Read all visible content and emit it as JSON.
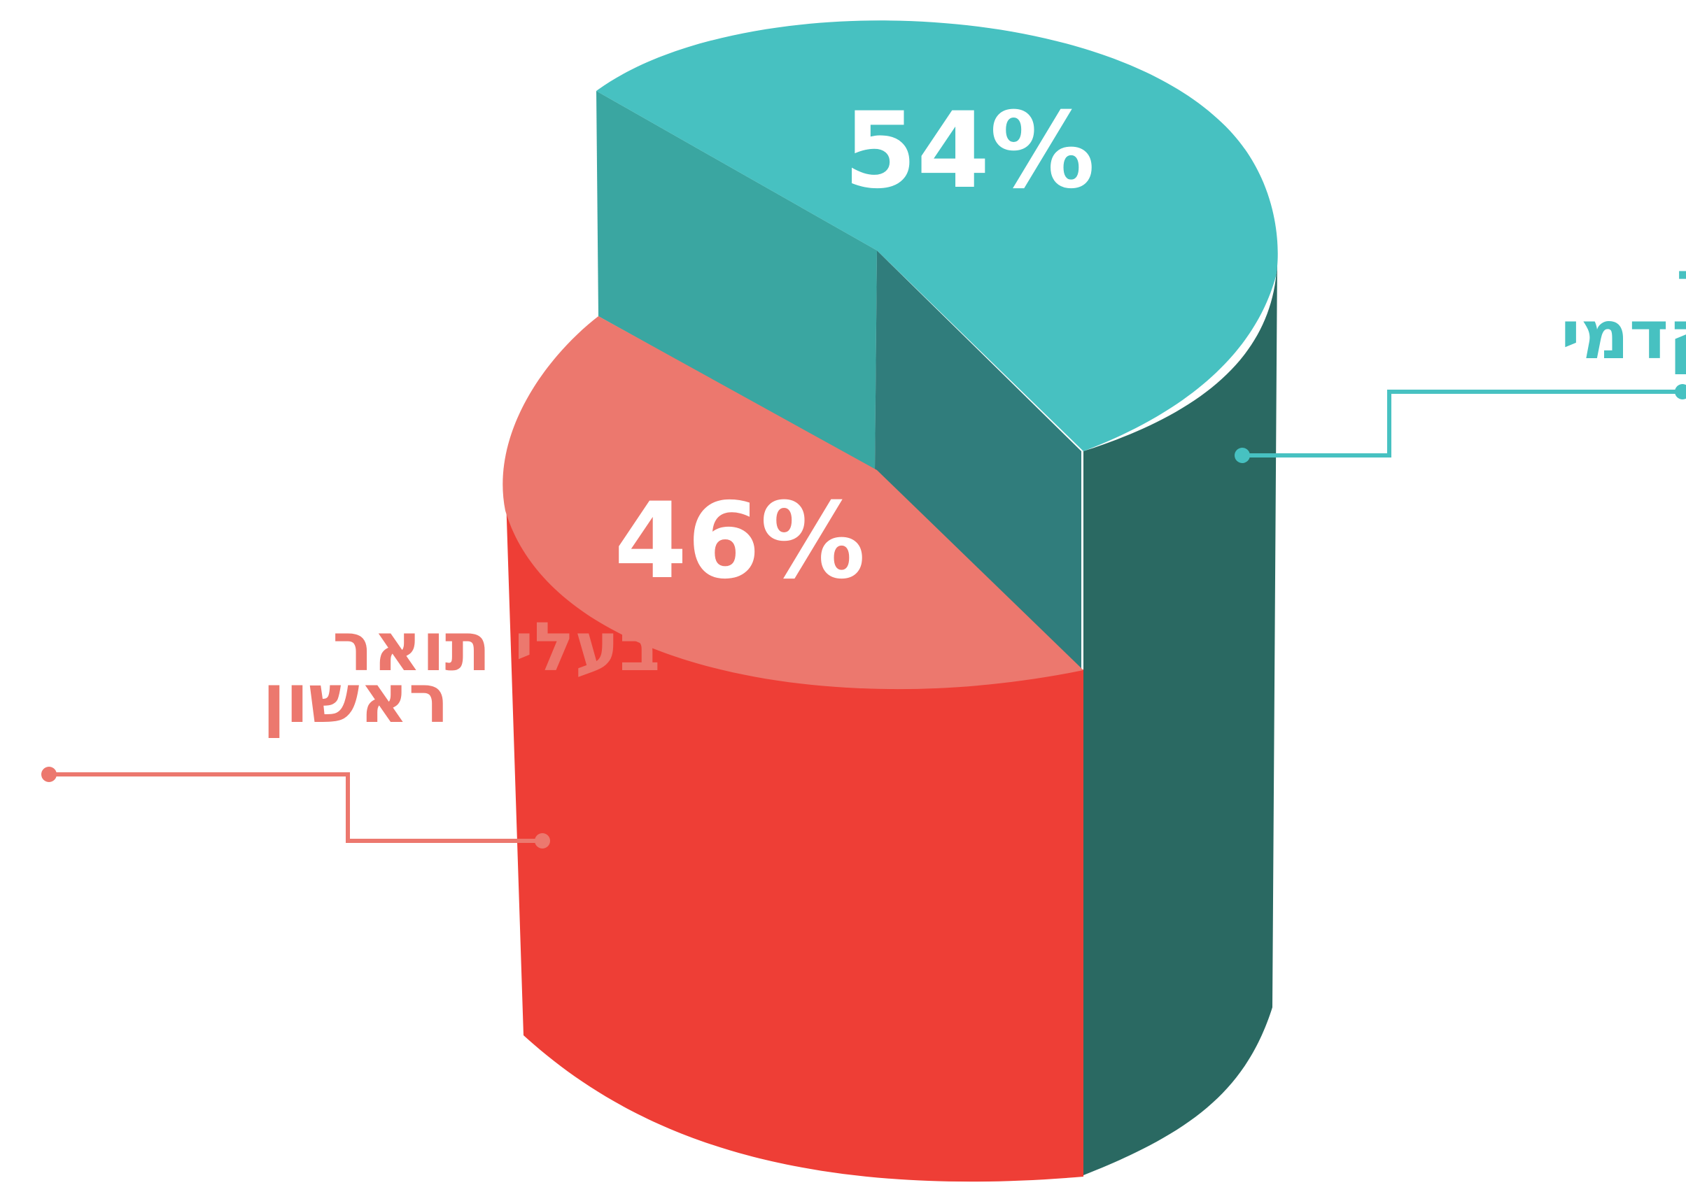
{
  "chart_data": {
    "type": "pie",
    "slices": [
      {
        "label_line1": "ללא תואר",
        "label_line2": "אקדמי",
        "value": 54,
        "value_label": "54%",
        "top_color": "#47c1c1",
        "side_color": "#2a6962",
        "inner_color": "#3aa6a1",
        "inner_color_dark": "#307d7c"
      },
      {
        "label_line1": "בעלי תואר",
        "label_line2": "ראשון",
        "value": 46,
        "value_label": "46%",
        "top_color": "#ec786e",
        "side_color": "#ee3e36",
        "label_color": "#ec786e"
      }
    ]
  }
}
